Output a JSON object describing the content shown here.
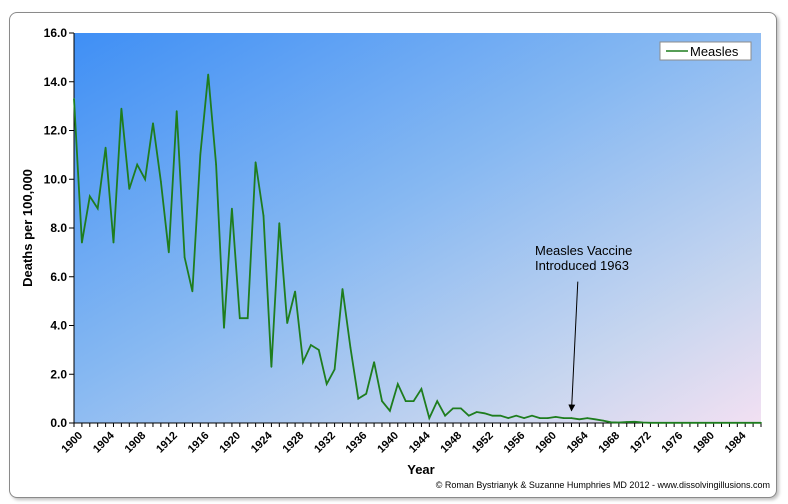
{
  "chart_data": {
    "type": "line",
    "title": "",
    "xlabel": "Year",
    "ylabel": "Deaths per 100,000",
    "ylim": [
      0,
      16
    ],
    "xlim": [
      1900,
      1987
    ],
    "y_ticks": [
      "0.0",
      "2.0",
      "4.0",
      "6.0",
      "8.0",
      "10.0",
      "12.0",
      "14.0",
      "16.0"
    ],
    "x_ticks": [
      "1900",
      "1904",
      "1908",
      "1912",
      "1916",
      "1920",
      "1924",
      "1928",
      "1932",
      "1936",
      "1940",
      "1944",
      "1948",
      "1952",
      "1956",
      "1960",
      "1964",
      "1968",
      "1972",
      "1976",
      "1980",
      "1984"
    ],
    "grid": false,
    "legend": "top-right",
    "series": [
      {
        "name": "Measles",
        "color": "#1e7d1e",
        "x": [
          1900,
          1901,
          1902,
          1903,
          1904,
          1905,
          1906,
          1907,
          1908,
          1909,
          1910,
          1911,
          1912,
          1913,
          1914,
          1915,
          1916,
          1917,
          1918,
          1919,
          1920,
          1921,
          1922,
          1923,
          1924,
          1925,
          1926,
          1927,
          1928,
          1929,
          1930,
          1931,
          1932,
          1933,
          1934,
          1935,
          1936,
          1937,
          1938,
          1939,
          1940,
          1941,
          1942,
          1943,
          1944,
          1945,
          1946,
          1947,
          1948,
          1949,
          1950,
          1951,
          1952,
          1953,
          1954,
          1955,
          1956,
          1957,
          1958,
          1959,
          1960,
          1961,
          1962,
          1963,
          1964,
          1965,
          1966,
          1967,
          1968,
          1969,
          1970,
          1971,
          1972,
          1973,
          1974,
          1975,
          1976,
          1977,
          1978,
          1979,
          1980,
          1981,
          1982,
          1983,
          1984,
          1985,
          1986,
          1987
        ],
        "y": [
          13.3,
          7.4,
          9.3,
          8.8,
          11.3,
          7.4,
          12.9,
          9.6,
          10.6,
          10.0,
          12.3,
          9.9,
          7.0,
          12.8,
          6.8,
          5.4,
          11.0,
          14.3,
          10.6,
          3.9,
          8.8,
          4.3,
          4.3,
          10.7,
          8.5,
          2.3,
          8.2,
          4.1,
          5.4,
          2.5,
          3.2,
          3.0,
          1.6,
          2.2,
          5.5,
          3.1,
          1.0,
          1.2,
          2.5,
          0.9,
          0.5,
          1.6,
          0.9,
          0.9,
          1.4,
          0.2,
          0.9,
          0.3,
          0.6,
          0.6,
          0.3,
          0.45,
          0.4,
          0.3,
          0.3,
          0.2,
          0.3,
          0.2,
          0.3,
          0.2,
          0.2,
          0.25,
          0.2,
          0.2,
          0.15,
          0.2,
          0.15,
          0.1,
          0.03,
          0.02,
          0.04,
          0.05,
          0.02,
          0.01,
          0.01,
          0.01,
          0.01,
          0.01,
          0.01,
          0.01,
          0.01,
          0.01,
          0.01,
          0.01,
          0.01,
          0.01,
          0.01,
          0.01
        ]
      }
    ],
    "annotations": [
      {
        "text_lines": [
          "Measles Vaccine",
          "Introduced 1963"
        ],
        "points_to": {
          "x": 1963,
          "y": 0.5
        },
        "text_anchor": {
          "x": 1956.5,
          "y": 7.2
        },
        "arrow_from": {
          "x": 1963.8,
          "y": 5.8
        }
      }
    ]
  },
  "credit": "© Roman Bystrianyk & Suzanne Humphries MD 2012 - www.dissolvingillusions.com"
}
